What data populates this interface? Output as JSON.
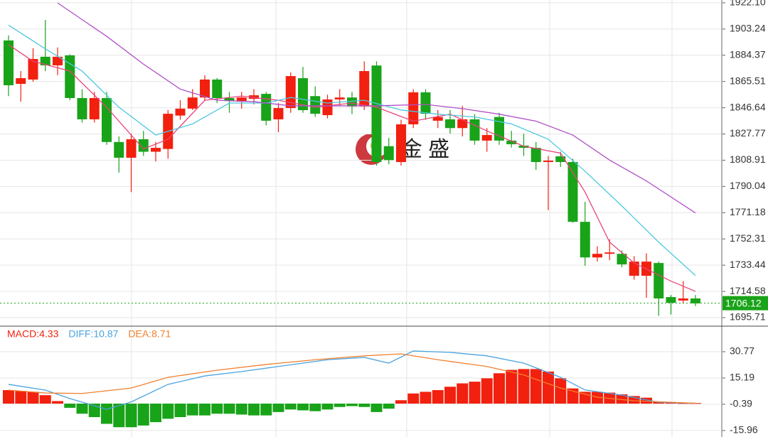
{
  "chart_data": [
    {
      "type": "candlestick",
      "ylim": [
        1690.1,
        1924.1
      ],
      "yticks": [
        {
          "value": 1922.1,
          "label": "1922.10"
        },
        1903.24,
        1884.37,
        1865.51,
        1846.64,
        1827.77,
        1808.91,
        1790.04,
        1771.18,
        1752.31,
        1733.44,
        1714.58,
        1695.71
      ],
      "grid": true,
      "up_color": "#f2200f",
      "down_color": "#19a319",
      "watermark": "金 盛",
      "open": [
        1895,
        1863.8,
        1866.9,
        1883.3,
        1877.1,
        1884.3,
        1853.6,
        1838.3,
        1853.6,
        1822,
        1810.7,
        1824,
        1815,
        1817,
        1841,
        1846,
        1854,
        1866.9,
        1853.6,
        1851,
        1853,
        1856.6,
        1838.3,
        1846.4,
        1867.9,
        1855,
        1841.3,
        1852.6,
        1854,
        1847.5,
        1877,
        1819,
        1807.6,
        1834.7,
        1857.7,
        1837.3,
        1838.3,
        1832,
        1838.3,
        1823,
        1840,
        1823,
        1819.4,
        1817.8,
        1807.6,
        1811.7,
        1807.6,
        1764.6,
        1739,
        1741.6,
        1741.6,
        1725.8,
        1725.8,
        1735,
        1710.5,
        1708,
        1709.5
      ],
      "high": [
        1898.6,
        1873,
        1889.4,
        1909.8,
        1890,
        1885,
        1860,
        1858,
        1858,
        1826,
        1828,
        1830,
        1822,
        1845,
        1852,
        1860,
        1870,
        1868,
        1858,
        1858,
        1860,
        1858,
        1850,
        1872,
        1876,
        1862,
        1856,
        1860,
        1858,
        1880,
        1880,
        1825,
        1838,
        1860,
        1860,
        1845,
        1845,
        1848,
        1842,
        1832,
        1843,
        1830,
        1828,
        1822,
        1812,
        1815,
        1810,
        1779,
        1747,
        1752,
        1744,
        1740,
        1742,
        1736,
        1712,
        1722,
        1712
      ],
      "low": [
        1855,
        1851,
        1865.3,
        1873,
        1870,
        1852,
        1836,
        1836,
        1820,
        1800,
        1786,
        1812,
        1808,
        1810,
        1838,
        1845,
        1852,
        1850,
        1843,
        1846,
        1849,
        1834,
        1829,
        1843,
        1843,
        1840,
        1839,
        1848,
        1842,
        1845,
        1805,
        1806,
        1805,
        1832,
        1838,
        1832,
        1828,
        1826,
        1820,
        1815,
        1820,
        1818,
        1812,
        1802,
        1773,
        1804,
        1764,
        1733,
        1736,
        1737,
        1732,
        1723,
        1710,
        1697,
        1698,
        1706,
        1704
      ],
      "close": [
        1862.8,
        1867.9,
        1881.7,
        1877.1,
        1883.3,
        1853.6,
        1838.3,
        1853.6,
        1822,
        1810.7,
        1824,
        1815,
        1817.8,
        1842.3,
        1846,
        1854,
        1866.9,
        1853.6,
        1851.5,
        1854,
        1855.6,
        1837.3,
        1846.4,
        1869.4,
        1844.9,
        1842.3,
        1852.6,
        1854,
        1847.5,
        1873,
        1807.6,
        1809,
        1834.7,
        1857.7,
        1842.3,
        1840,
        1832,
        1838.3,
        1823,
        1827,
        1823,
        1820.4,
        1817.8,
        1807.6,
        1808.6,
        1807.6,
        1764.6,
        1739,
        1741.6,
        1742.6,
        1734,
        1736,
        1736,
        1709.5,
        1706.4,
        1709.5,
        1706
      ],
      "lines": [
        {
          "color": "#e8457a",
          "x": [
            0,
            2,
            5,
            8,
            11,
            13,
            16,
            19,
            22,
            25,
            28,
            30,
            33,
            36,
            39,
            42,
            45,
            47,
            49,
            51,
            54,
            56
          ],
          "values": [
            1892,
            1880,
            1873,
            1847,
            1817,
            1824,
            1852,
            1855,
            1852,
            1847,
            1850,
            1847,
            1837,
            1842,
            1830,
            1819,
            1814,
            1786,
            1750,
            1735,
            1722,
            1714.6
          ]
        },
        {
          "color": "#4cc8e0",
          "x": [
            0,
            3,
            6,
            9,
            12,
            15,
            18,
            21,
            23,
            26,
            29,
            32,
            35,
            38,
            41,
            44,
            47,
            50,
            53,
            56
          ],
          "values": [
            1906,
            1889,
            1873,
            1847,
            1827,
            1835,
            1850,
            1850,
            1854,
            1850,
            1852,
            1845,
            1842,
            1840,
            1835,
            1824,
            1801,
            1776,
            1750,
            1726
          ]
        },
        {
          "color": "#b04fc6",
          "x": [
            4,
            8,
            11,
            14,
            17,
            20,
            23,
            26,
            30,
            34,
            37,
            40,
            43,
            46,
            49,
            52,
            56
          ],
          "values": [
            1922,
            1898,
            1878,
            1860,
            1852,
            1851,
            1848,
            1848,
            1848,
            1849,
            1846,
            1842,
            1837,
            1827,
            1809,
            1794,
            1771
          ]
        }
      ],
      "last_price": {
        "value": 1706.12,
        "color": "#19a319"
      }
    },
    {
      "type": "macd",
      "ylim": [
        -19.8,
        45.5
      ],
      "yticks": [
        30.77,
        15.19,
        -0.39,
        -15.96
      ],
      "grid": true,
      "legend": [
        {
          "text": "MACD:4.33",
          "color": "#f2200f"
        },
        {
          "text": "DIFF:10.87",
          "color": "#4aa3e0"
        },
        {
          "text": "DEA:8.71",
          "color": "#f08030"
        }
      ],
      "up_color": "#f2200f",
      "down_color": "#19a319",
      "histogram": [
        8,
        7.5,
        7,
        5,
        1.5,
        -2.5,
        -6,
        -8,
        -12,
        -14,
        -14,
        -13,
        -11,
        -9,
        -8,
        -7,
        -7,
        -6,
        -6,
        -6.5,
        -7,
        -7,
        -5,
        -3.5,
        -4,
        -4.5,
        -3.5,
        -2,
        -1.5,
        -2,
        -5,
        -3,
        2,
        6,
        7,
        8,
        10,
        12,
        13,
        15,
        18,
        20,
        20.5,
        20.5,
        19,
        15,
        9,
        7,
        7,
        6.5,
        5.5,
        4.5,
        3.5,
        1,
        0.6,
        0.3,
        0.3
      ],
      "series": [
        {
          "color": "#4aa3e0",
          "x": [
            0,
            3,
            5,
            8,
            10,
            13,
            16,
            19,
            22,
            24,
            26,
            29,
            31,
            33,
            36,
            39,
            42,
            45,
            47,
            50,
            53,
            56
          ],
          "values": [
            11.4,
            8,
            3,
            -3.4,
            1,
            11.4,
            16.4,
            19,
            22,
            24,
            26,
            27.4,
            24,
            31.2,
            30.4,
            28.3,
            24,
            15.6,
            8.1,
            5,
            0.8,
            0.2
          ]
        },
        {
          "color": "#f08030",
          "x": [
            0,
            3,
            6,
            10,
            13,
            17,
            21,
            25,
            29,
            32,
            35,
            39,
            42,
            45,
            48,
            51,
            56
          ],
          "values": [
            8,
            6.3,
            6,
            9.2,
            15.6,
            19.8,
            23.2,
            26,
            28.3,
            29.5,
            26,
            22,
            17,
            9.2,
            3.8,
            1.7,
            0.2
          ]
        }
      ]
    }
  ]
}
